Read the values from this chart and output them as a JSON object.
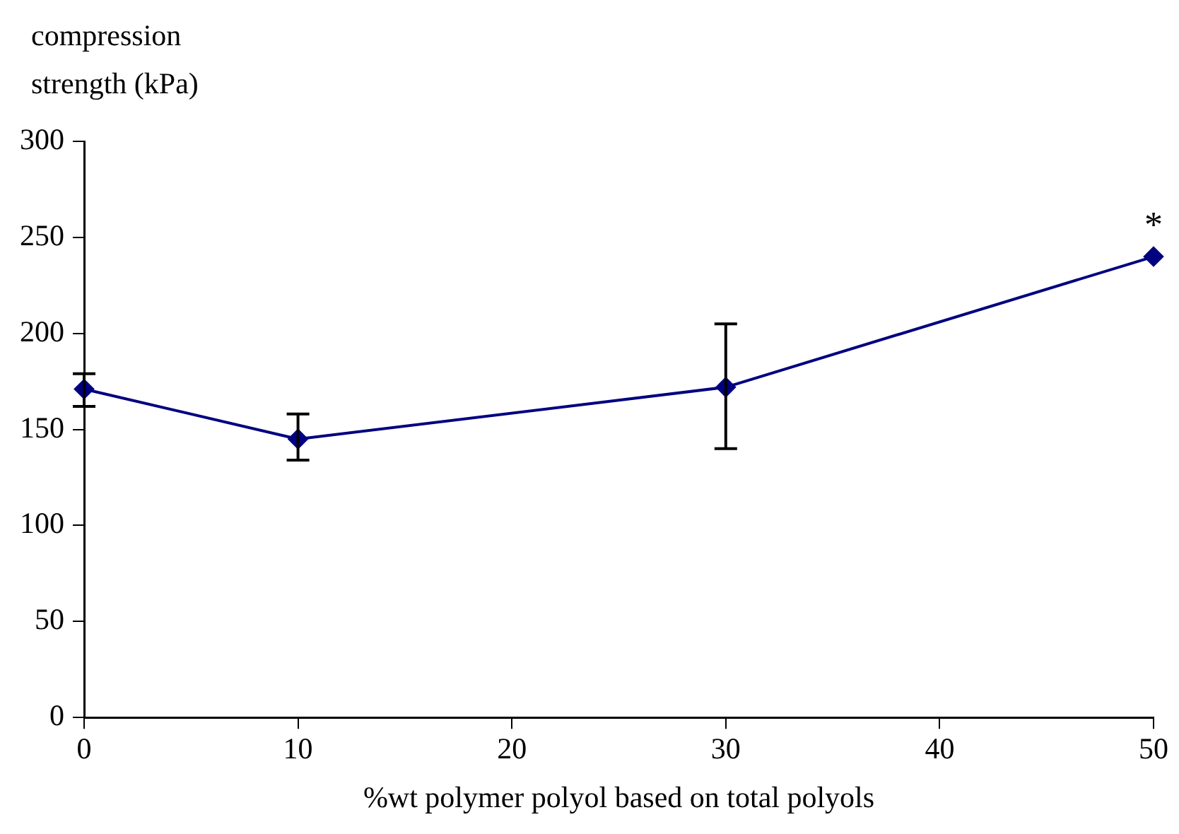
{
  "chart_data": {
    "type": "line",
    "ylabel": "compression strength (kPa)",
    "xlabel": "%wt polymer polyol based on total polyols",
    "x": [
      0,
      10,
      30,
      50
    ],
    "series": [
      {
        "color": "#000080",
        "values": [
          171,
          145,
          172,
          240
        ],
        "errors": [
          [
            162,
            179
          ],
          [
            134,
            158
          ],
          [
            140,
            205
          ],
          null
        ]
      }
    ],
    "xlim": [
      0,
      50
    ],
    "xticks": [
      0,
      10,
      20,
      30,
      40,
      50
    ],
    "ylim": [
      0,
      300
    ],
    "yticks": [
      0,
      50,
      100,
      150,
      200,
      250,
      300
    ],
    "grid": false,
    "legend": false,
    "marker": "diamond",
    "line_style": "solid",
    "annotations": [
      {
        "text": "*",
        "x": 50,
        "y": 240
      }
    ]
  }
}
